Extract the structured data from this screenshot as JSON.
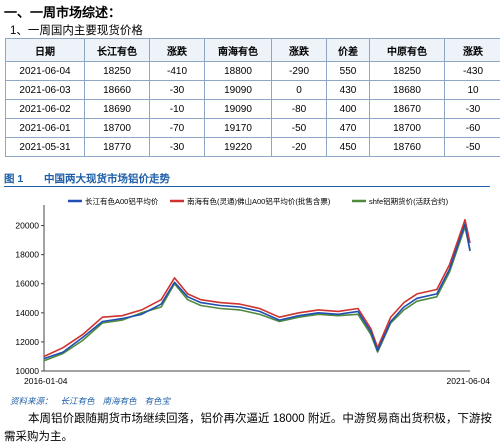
{
  "section_heading": "一、一周市场综述：",
  "subheading": "1、一周国内主要现货价格",
  "table": {
    "headers": [
      "日期",
      "长江有色",
      "涨跌",
      "南海有色",
      "涨跌",
      "价差",
      "中原有色",
      "涨跌"
    ],
    "rows": [
      [
        "2021-06-04",
        "18250",
        "-410",
        "18800",
        "-290",
        "550",
        "18250",
        "-430"
      ],
      [
        "2021-06-03",
        "18660",
        "-30",
        "19090",
        "0",
        "430",
        "18680",
        "10"
      ],
      [
        "2021-06-02",
        "18690",
        "-10",
        "19090",
        "-80",
        "400",
        "18670",
        "-30"
      ],
      [
        "2021-06-01",
        "18700",
        "-70",
        "19170",
        "-50",
        "470",
        "18700",
        "-60"
      ],
      [
        "2021-05-31",
        "18770",
        "-30",
        "19220",
        "-20",
        "450",
        "18760",
        "-50"
      ]
    ]
  },
  "figure": {
    "number": "图 1",
    "title": "中国两大现货市场铝价走势"
  },
  "source": {
    "label": "资料来源：",
    "items": [
      "长江有色",
      "南海有色",
      "有色宝"
    ]
  },
  "paragraph": "本周铝价跟随期货市场继续回落，铝价再次逼近 18000 附近。中游贸易商出货积极，下游按需采购为主。",
  "chart_data": {
    "type": "line",
    "x_start_label": "2016-01-04",
    "x_end_label": "2021-06-04",
    "ylim": [
      10000,
      21000
    ],
    "yticks": [
      10000,
      12000,
      14000,
      16000,
      18000,
      20000
    ],
    "grid": false,
    "legend_position": "top",
    "colors": {
      "axis": "#444444",
      "figure_accent": "#1f5fa8"
    },
    "series": [
      {
        "name": "长江有色A00铝平均价",
        "color": "#1f4fb4",
        "x": [
          "2016-01-04",
          "2016-04",
          "2016-07",
          "2016-10",
          "2017-01",
          "2017-04",
          "2017-07",
          "2017-09",
          "2017-11",
          "2018-01",
          "2018-04",
          "2018-07",
          "2018-10",
          "2019-01",
          "2019-04",
          "2019-07",
          "2019-10",
          "2020-01",
          "2020-03",
          "2020-04",
          "2020-06",
          "2020-08",
          "2020-10",
          "2021-01",
          "2021-03",
          "2021-05-12",
          "2021-06-04"
        ],
        "values": [
          10850,
          11300,
          12300,
          13400,
          13600,
          13900,
          14600,
          16100,
          15100,
          14700,
          14500,
          14400,
          14100,
          13500,
          13800,
          14000,
          13900,
          14100,
          12700,
          11400,
          13400,
          14400,
          15000,
          15300,
          17000,
          20100,
          18250
        ]
      },
      {
        "name": "南海有色(灵通)佛山A00铝平均价(批售含票)",
        "color": "#d0322d",
        "x": [
          "2016-01-04",
          "2016-04",
          "2016-07",
          "2016-10",
          "2017-01",
          "2017-04",
          "2017-07",
          "2017-09",
          "2017-11",
          "2018-01",
          "2018-04",
          "2018-07",
          "2018-10",
          "2019-01",
          "2019-04",
          "2019-07",
          "2019-10",
          "2020-01",
          "2020-03",
          "2020-04",
          "2020-06",
          "2020-08",
          "2020-10",
          "2021-01",
          "2021-03",
          "2021-05-12",
          "2021-06-04"
        ],
        "values": [
          11000,
          11600,
          12500,
          13700,
          13800,
          14200,
          14900,
          16400,
          15300,
          14900,
          14700,
          14600,
          14300,
          13700,
          14000,
          14200,
          14100,
          14300,
          12900,
          11600,
          13700,
          14700,
          15300,
          15600,
          17300,
          20400,
          18800
        ]
      },
      {
        "name": "shfe铝期货价(活跃合约)",
        "color": "#4f8a3c",
        "x": [
          "2016-01-04",
          "2016-04",
          "2016-07",
          "2016-10",
          "2017-01",
          "2017-04",
          "2017-07",
          "2017-09",
          "2017-11",
          "2018-01",
          "2018-04",
          "2018-07",
          "2018-10",
          "2019-01",
          "2019-04",
          "2019-07",
          "2019-10",
          "2020-01",
          "2020-03",
          "2020-04",
          "2020-06",
          "2020-08",
          "2020-10",
          "2021-01",
          "2021-03",
          "2021-05-12",
          "2021-06-04"
        ],
        "values": [
          10700,
          11200,
          12100,
          13300,
          13500,
          14000,
          14400,
          16000,
          14900,
          14500,
          14300,
          14200,
          13900,
          13400,
          13700,
          13900,
          13800,
          13900,
          12500,
          11300,
          13300,
          14200,
          14800,
          15100,
          16800,
          19900,
          18300
        ]
      }
    ]
  }
}
